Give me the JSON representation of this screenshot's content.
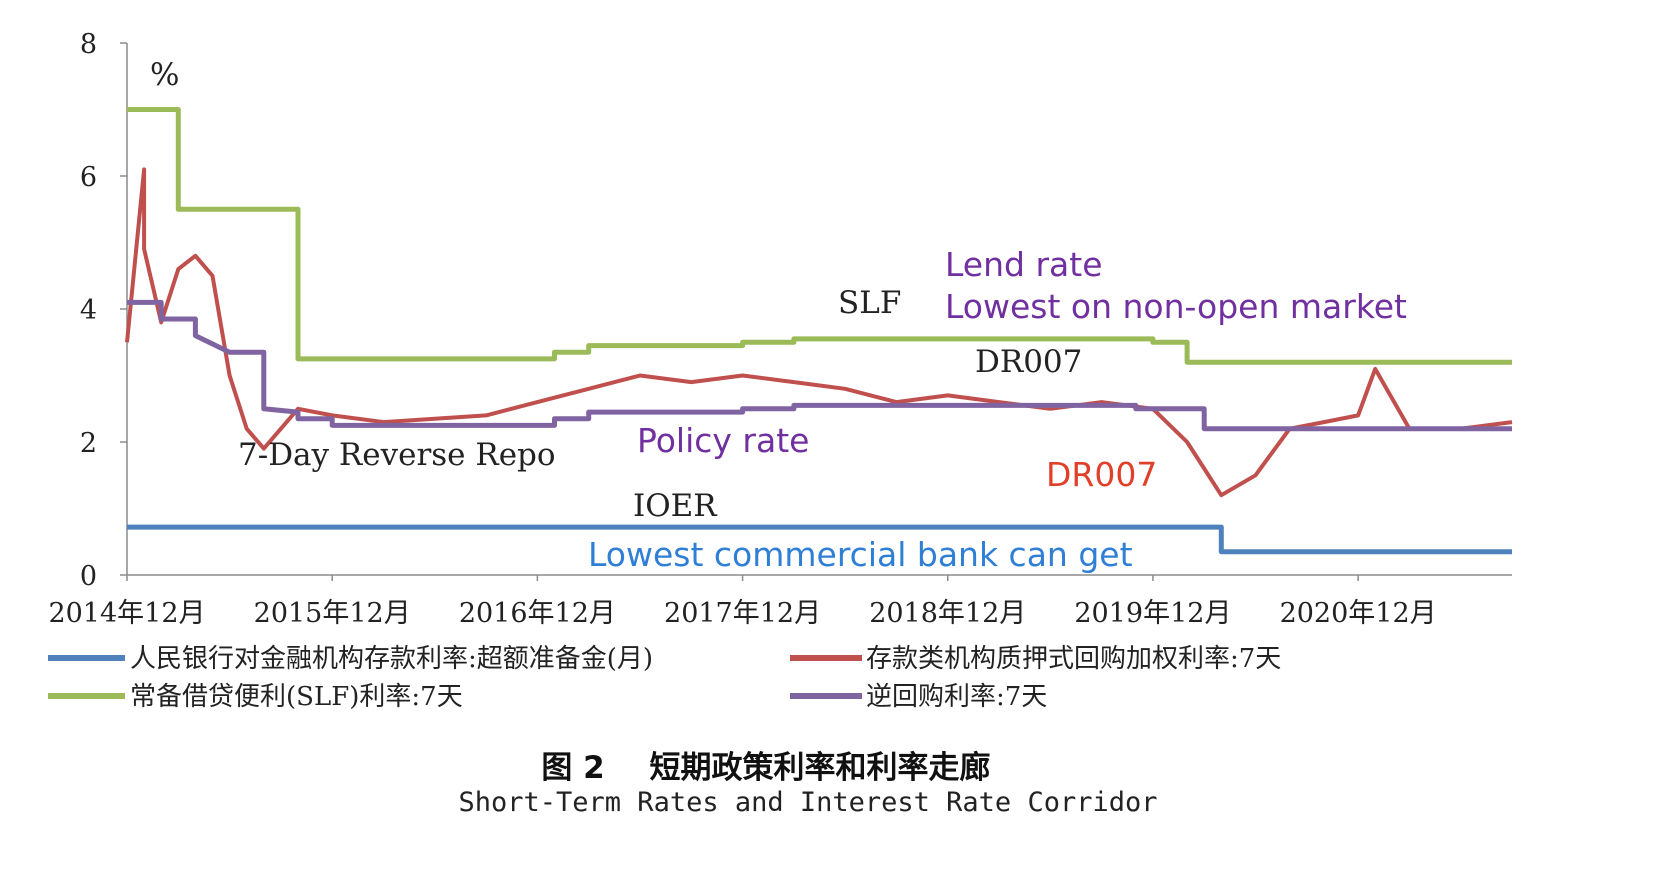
{
  "chart_data": {
    "type": "line",
    "unit_label": "%",
    "ylim": [
      0,
      8
    ],
    "y_ticks": [
      "0",
      "2",
      "4",
      "6",
      "8"
    ],
    "x_range": [
      "2014-12",
      "2021-09"
    ],
    "x_tick_labels": [
      "2014年12月",
      "2015年12月",
      "2016年12月",
      "2017年12月",
      "2018年12月",
      "2019年12月",
      "2020年12月"
    ],
    "x_tick_dates": [
      "2014-12",
      "2015-12",
      "2016-12",
      "2017-12",
      "2018-12",
      "2019-12",
      "2020-12"
    ],
    "grid": false,
    "legend_position": "bottom",
    "series": [
      {
        "name": "人民银行对金融机构存款利率:超额准备金(月)",
        "color": "#4f81bd",
        "points": [
          [
            "2014-12",
            0.72
          ],
          [
            "2020-04",
            0.72
          ],
          [
            "2020-04",
            0.35
          ],
          [
            "2021-09",
            0.35
          ]
        ]
      },
      {
        "name": "存款类机构质押式回购加权利率:7天",
        "color": "#c0504d",
        "points": [
          [
            "2014-12",
            3.5
          ],
          [
            "2015-01",
            6.1
          ],
          [
            "2015-01",
            4.9
          ],
          [
            "2015-02",
            3.8
          ],
          [
            "2015-03",
            4.6
          ],
          [
            "2015-04",
            4.8
          ],
          [
            "2015-05",
            4.5
          ],
          [
            "2015-06",
            3.0
          ],
          [
            "2015-07",
            2.2
          ],
          [
            "2015-08",
            1.9
          ],
          [
            "2015-09",
            2.2
          ],
          [
            "2015-10",
            2.5
          ],
          [
            "2015-12",
            2.4
          ],
          [
            "2016-03",
            2.3
          ],
          [
            "2016-06",
            2.35
          ],
          [
            "2016-09",
            2.4
          ],
          [
            "2016-12",
            2.6
          ],
          [
            "2017-03",
            2.8
          ],
          [
            "2017-06",
            3.0
          ],
          [
            "2017-09",
            2.9
          ],
          [
            "2017-12",
            3.0
          ],
          [
            "2018-03",
            2.9
          ],
          [
            "2018-06",
            2.8
          ],
          [
            "2018-09",
            2.6
          ],
          [
            "2018-12",
            2.7
          ],
          [
            "2019-03",
            2.6
          ],
          [
            "2019-06",
            2.5
          ],
          [
            "2019-09",
            2.6
          ],
          [
            "2019-12",
            2.5
          ],
          [
            "2020-02",
            2.0
          ],
          [
            "2020-04",
            1.2
          ],
          [
            "2020-06",
            1.5
          ],
          [
            "2020-08",
            2.2
          ],
          [
            "2020-10",
            2.3
          ],
          [
            "2020-12",
            2.4
          ],
          [
            "2021-01",
            3.1
          ],
          [
            "2021-03",
            2.2
          ],
          [
            "2021-06",
            2.2
          ],
          [
            "2021-09",
            2.3
          ]
        ]
      },
      {
        "name": "常备借贷便利(SLF)利率:7天",
        "color": "#9bbb59",
        "points": [
          [
            "2014-12",
            7.0
          ],
          [
            "2015-03",
            7.0
          ],
          [
            "2015-03",
            5.5
          ],
          [
            "2015-10",
            5.5
          ],
          [
            "2015-10",
            3.25
          ],
          [
            "2017-01",
            3.25
          ],
          [
            "2017-01",
            3.35
          ],
          [
            "2017-03",
            3.35
          ],
          [
            "2017-03",
            3.45
          ],
          [
            "2017-12",
            3.45
          ],
          [
            "2017-12",
            3.5
          ],
          [
            "2018-03",
            3.5
          ],
          [
            "2018-03",
            3.55
          ],
          [
            "2019-12",
            3.55
          ],
          [
            "2019-12",
            3.5
          ],
          [
            "2020-02",
            3.5
          ],
          [
            "2020-02",
            3.2
          ],
          [
            "2021-09",
            3.2
          ]
        ]
      },
      {
        "name": "逆回购利率:7天",
        "color": "#8064a2",
        "points": [
          [
            "2014-12",
            4.1
          ],
          [
            "2015-02",
            4.1
          ],
          [
            "2015-02",
            3.85
          ],
          [
            "2015-04",
            3.85
          ],
          [
            "2015-04",
            3.6
          ],
          [
            "2015-06",
            3.35
          ],
          [
            "2015-06",
            3.35
          ],
          [
            "2015-08",
            3.35
          ],
          [
            "2015-08",
            2.5
          ],
          [
            "2015-10",
            2.45
          ],
          [
            "2015-10",
            2.35
          ],
          [
            "2015-12",
            2.35
          ],
          [
            "2015-12",
            2.25
          ],
          [
            "2017-01",
            2.25
          ],
          [
            "2017-01",
            2.35
          ],
          [
            "2017-03",
            2.35
          ],
          [
            "2017-03",
            2.45
          ],
          [
            "2017-12",
            2.45
          ],
          [
            "2017-12",
            2.5
          ],
          [
            "2018-03",
            2.5
          ],
          [
            "2018-03",
            2.55
          ],
          [
            "2019-11",
            2.55
          ],
          [
            "2019-11",
            2.5
          ],
          [
            "2020-03",
            2.5
          ],
          [
            "2020-03",
            2.2
          ],
          [
            "2021-09",
            2.2
          ]
        ]
      }
    ],
    "annotations": [
      {
        "text": "SLF",
        "color": "#222222"
      },
      {
        "text": "DR007",
        "color": "#222222"
      },
      {
        "text": "7-Day Reverse Repo",
        "color": "#222222"
      },
      {
        "text": "IOER",
        "color": "#222222"
      },
      {
        "text": "Lend rate",
        "color": "#7030a0"
      },
      {
        "text": "Lowest on non-open market",
        "color": "#7030a0"
      },
      {
        "text": "Policy rate",
        "color": "#7030a0"
      },
      {
        "text": "DR007",
        "color": "#e0402a"
      },
      {
        "text": "Lowest commercial bank can get",
        "color": "#2f7fd6"
      }
    ]
  },
  "caption": {
    "figure_no": "图 2",
    "title_cn": "短期政策利率和利率走廊",
    "title_en": "Short-Term Rates and Interest Rate Corridor"
  }
}
